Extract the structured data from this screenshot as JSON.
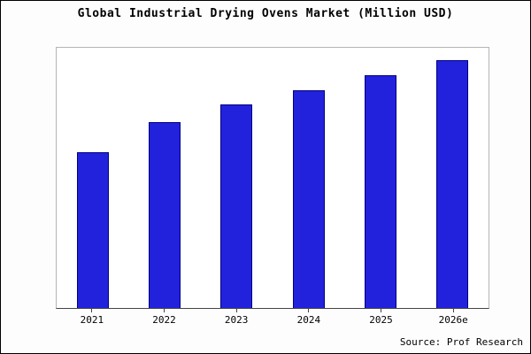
{
  "title": "Global Industrial Drying Ovens Market (Million USD)",
  "source": "Source: Prof Research",
  "colors": {
    "bar_fill": "#2222dd",
    "bar_edge": "#000080",
    "axis": "#444444",
    "plot_border": "#b5b5b5"
  },
  "chart_data": {
    "type": "bar",
    "categories": [
      "2021",
      "2022",
      "2023",
      "2024",
      "2025",
      "2026e"
    ],
    "values": [
      63,
      75,
      82,
      88,
      94,
      100
    ],
    "title": "Global Industrial Drying Ovens Market (Million USD)",
    "xlabel": "",
    "ylabel": "",
    "ylim": [
      0,
      105
    ],
    "grid": false,
    "legend": false,
    "legend_position": "none",
    "annotations": [
      "Source: Prof Research"
    ]
  }
}
